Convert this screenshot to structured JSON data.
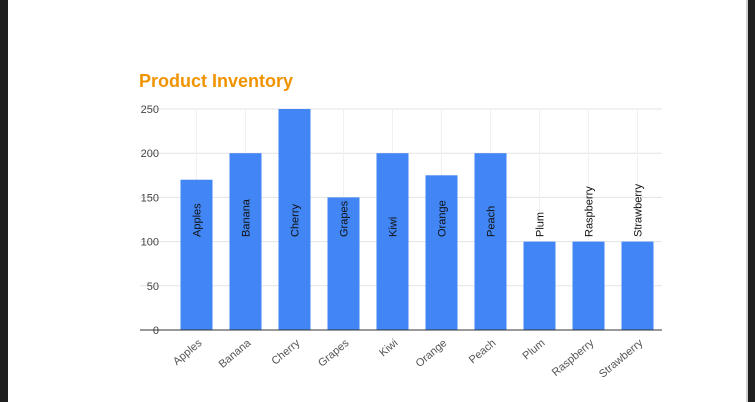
{
  "chart_data": {
    "type": "bar",
    "title": "Product Inventory",
    "xlabel": "",
    "ylabel": "",
    "categories": [
      "Apples",
      "Banana",
      "Cherry",
      "Grapes",
      "Kiwi",
      "Orange",
      "Peach",
      "Plum",
      "Raspberry",
      "Strawberry"
    ],
    "values": [
      170,
      200,
      250,
      150,
      200,
      175,
      200,
      100,
      100,
      100
    ],
    "data_labels": [
      "Apples",
      "Banana",
      "Cherry",
      "Grapes",
      "Kiwi",
      "Orange",
      "Peach",
      "Plum",
      "Raspberry",
      "Strawberry"
    ],
    "ylim": [
      0,
      250
    ],
    "yticks": [
      0,
      50,
      100,
      150,
      200,
      250
    ],
    "grid": true,
    "legend": "none"
  },
  "colors": {
    "bar": "#4285f4",
    "title": "#f09300",
    "grid": "#e3e3e3",
    "axis": "#333333"
  }
}
